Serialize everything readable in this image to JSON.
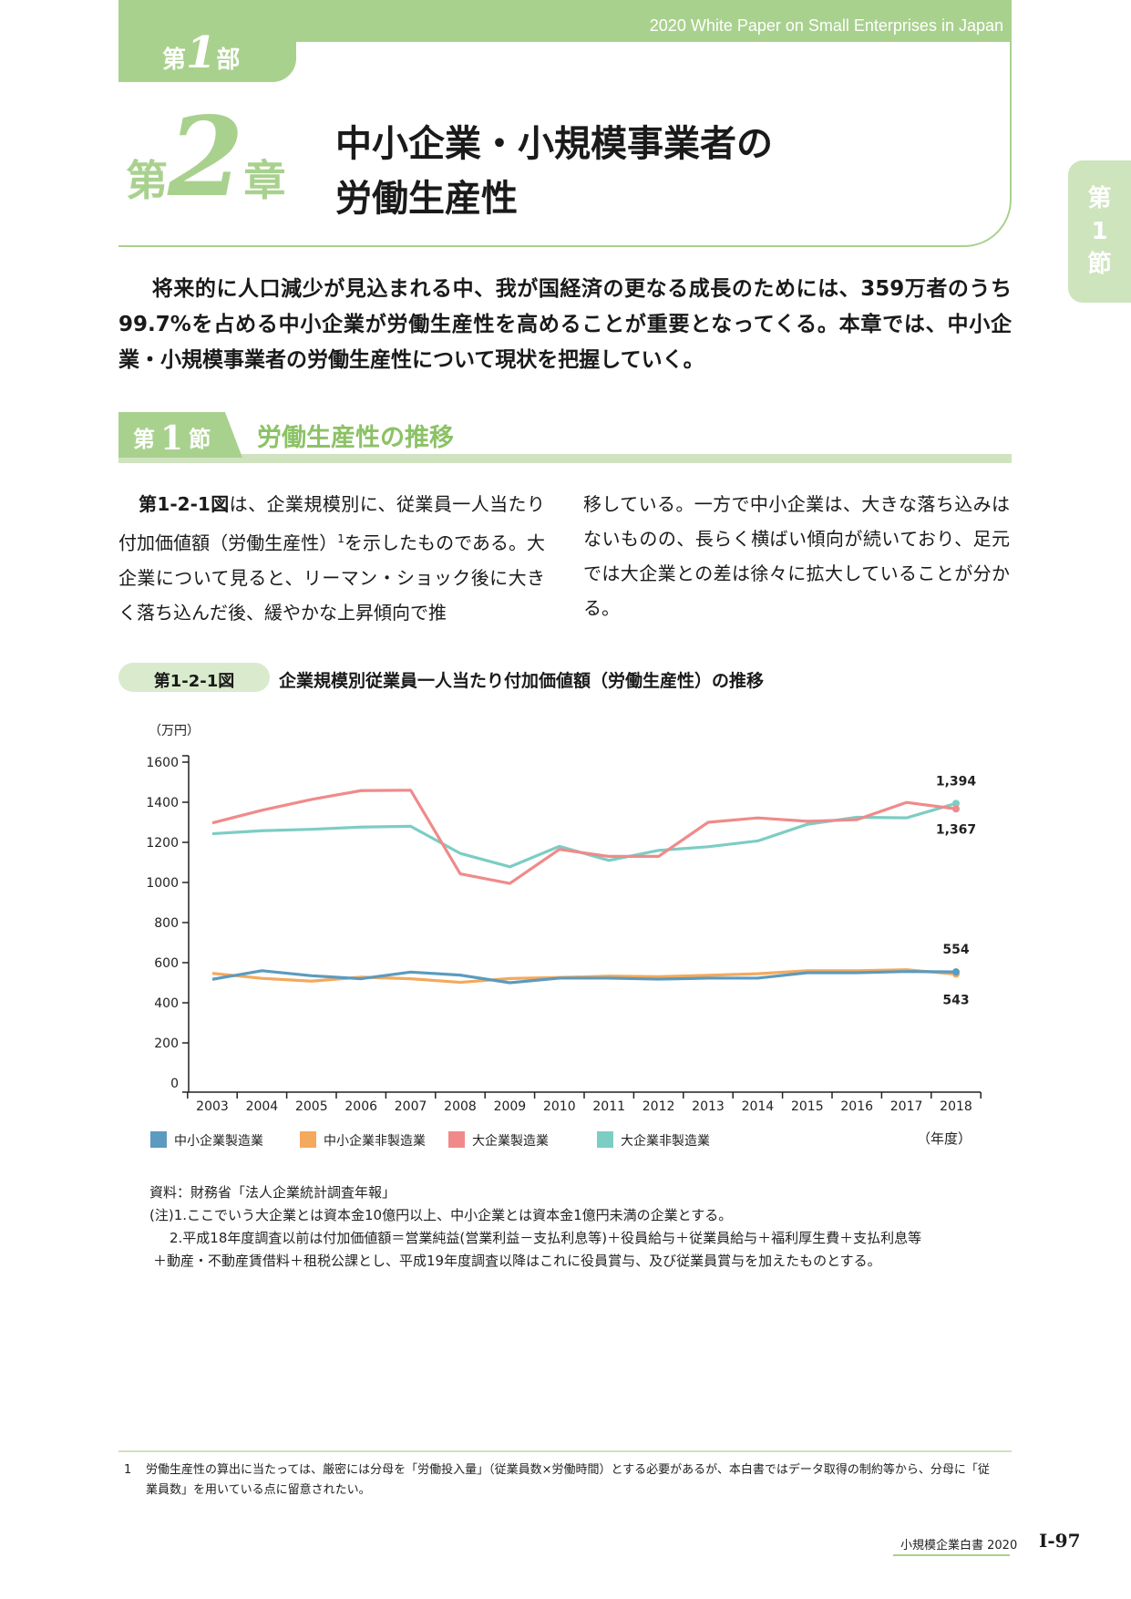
{
  "header": {
    "english_title": "2020 White Paper on Small Enterprises in Japan",
    "part_prefix": "第",
    "part_number": "1",
    "part_suffix": "部"
  },
  "chapter": {
    "prefix": "第",
    "number": "2",
    "suffix": "章",
    "title_line1": "中小企業・小規模事業者の",
    "title_line2": "労働生産性"
  },
  "side_tab": {
    "line1": "第",
    "line2": "1",
    "line3": "節"
  },
  "intro_text": "将来的に人口減少が見込まれる中、我が国経済の更なる成長のためには、359万者のうち99.7%を占める中小企業が労働生産性を高めることが重要となってくる。本章では、中小企業・小規模事業者の労働生産性について現状を把握していく。",
  "section": {
    "prefix": "第",
    "number": "1",
    "suffix": "節",
    "title": "労働生産性の推移"
  },
  "body": {
    "fig_ref": "第1-2-1図",
    "left_text_a": "は、企業規模別に、従業員一人当たり付加価値額（労働生産性）",
    "footnote_mark": "1",
    "left_text_b": "を示したものである。大企業について見ると、リーマン・ショック後に大きく落ち込んだ後、緩やかな上昇傾向で推",
    "right_text": "移している。一方で中小企業は、大きな落ち込みはないものの、長らく横ばい傾向が続いており、足元では大企業との差は徐々に拡大していることが分かる。"
  },
  "figure": {
    "number": "第1-2-1図",
    "title": "企業規模別従業員一人当たり付加価値額（労働生産性）の推移"
  },
  "chart_data": {
    "type": "line",
    "title": "企業規模別従業員一人当たり付加価値額（労働生産性）の推移",
    "ylabel": "（万円）",
    "xlabel": "（年度）",
    "ylim": [
      0,
      1600
    ],
    "yticks": [
      "0",
      "200",
      "400",
      "600",
      "800",
      "1000",
      "1200",
      "1400",
      "1600"
    ],
    "x": [
      "2003",
      "2004",
      "2005",
      "2006",
      "2007",
      "2008",
      "2009",
      "2010",
      "2011",
      "2012",
      "2013",
      "2014",
      "2015",
      "2016",
      "2017",
      "2018"
    ],
    "legend_position": "bottom",
    "series": [
      {
        "name": "中小企業製造業",
        "color": "#5b9bbf",
        "values": [
          517,
          560,
          535,
          520,
          553,
          538,
          500,
          523,
          523,
          518,
          523,
          523,
          550,
          550,
          556,
          554
        ]
      },
      {
        "name": "中小企業非製造業",
        "color": "#f5a95c",
        "values": [
          547,
          522,
          508,
          528,
          520,
          502,
          521,
          526,
          533,
          530,
          537,
          545,
          560,
          560,
          565,
          543
        ]
      },
      {
        "name": "大企業製造業",
        "color": "#f08a8a",
        "values": [
          1297,
          1360,
          1414,
          1458,
          1460,
          1043,
          995,
          1165,
          1130,
          1130,
          1300,
          1322,
          1305,
          1313,
          1399,
          1367
        ]
      },
      {
        "name": "大企業非製造業",
        "color": "#7ccdc4",
        "values": [
          1243,
          1258,
          1265,
          1276,
          1280,
          1145,
          1078,
          1180,
          1110,
          1160,
          1178,
          1207,
          1290,
          1325,
          1322,
          1394
        ]
      }
    ],
    "annotations": [
      {
        "series": "大企業非製造業",
        "x": "2018",
        "text": "1,394"
      },
      {
        "series": "大企業製造業",
        "x": "2018",
        "text": "1,367"
      },
      {
        "series": "中小企業製造業",
        "x": "2018",
        "text": "554"
      },
      {
        "series": "中小企業非製造業",
        "x": "2018",
        "text": "543"
      }
    ]
  },
  "notes": {
    "source": "資料：財務省「法人企業統計調査年報」",
    "note1": "(注)1.ここでいう大企業とは資本金10億円以上、中小企業とは資本金1億円未満の企業とする。",
    "note2a": "2.平成18年度調査以前は付加価値額＝営業純益(営業利益－支払利息等)＋役員給与＋従業員給与＋福利厚生費＋支払利息等",
    "note2b": "＋動産・不動産賃借料＋租税公課とし、平成19年度調査以降はこれに役員賞与、及び従業員賞与を加えたものとする。"
  },
  "footnote": {
    "mark": "1",
    "line1": "労働生産性の算出に当たっては、厳密には分母を「労働投入量」（従業員数×労働時間）とする必要があるが、本白書ではデータ取得の制約等から、分母に「従",
    "line2": "業員数」を用いている点に留意されたい。"
  },
  "footer": {
    "book": "小規模企業白書 2020",
    "page": "Ⅰ-97"
  }
}
